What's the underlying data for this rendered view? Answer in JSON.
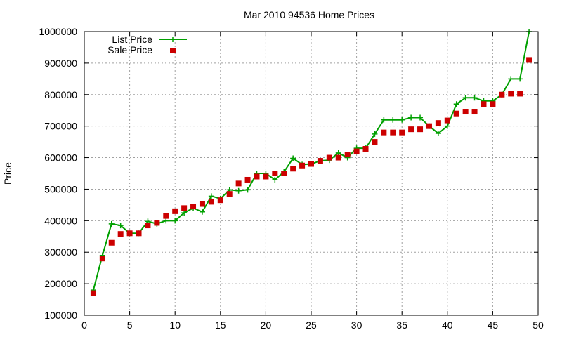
{
  "chart_data": {
    "type": "line",
    "title": "Mar 2010 94536 Home Prices",
    "xlabel": "",
    "ylabel": "Price",
    "xlim": [
      0,
      50
    ],
    "ylim": [
      100000,
      1000000
    ],
    "x_ticks": [
      0,
      5,
      10,
      15,
      20,
      25,
      30,
      35,
      40,
      45,
      50
    ],
    "y_ticks": [
      100000,
      200000,
      300000,
      400000,
      500000,
      600000,
      700000,
      800000,
      900000,
      1000000
    ],
    "grid": true,
    "legend_position": "top-left",
    "series": [
      {
        "name": "List Price",
        "style": "line+plus",
        "color": "#00a000",
        "x": [
          1,
          2,
          3,
          4,
          5,
          6,
          7,
          8,
          9,
          10,
          11,
          12,
          13,
          14,
          15,
          16,
          17,
          18,
          19,
          20,
          21,
          22,
          23,
          24,
          25,
          26,
          27,
          28,
          29,
          30,
          31,
          32,
          33,
          34,
          35,
          36,
          37,
          38,
          39,
          40,
          41,
          42,
          43,
          44,
          45,
          46,
          47,
          48,
          49
        ],
        "y": [
          180000,
          290000,
          390000,
          385000,
          360000,
          360000,
          398000,
          390000,
          400000,
          400000,
          425000,
          440000,
          428000,
          478000,
          470000,
          498000,
          495000,
          498000,
          550000,
          550000,
          530000,
          555000,
          598000,
          578000,
          580000,
          590000,
          592000,
          615000,
          600000,
          630000,
          630000,
          675000,
          720000,
          720000,
          720000,
          727000,
          727000,
          700000,
          677000,
          700000,
          770000,
          790000,
          790000,
          780000,
          780000,
          800000,
          850000,
          850000,
          1000000
        ]
      },
      {
        "name": "Sale Price",
        "style": "square",
        "color": "#cc0000",
        "x": [
          1,
          2,
          3,
          4,
          5,
          6,
          7,
          8,
          9,
          10,
          11,
          12,
          13,
          14,
          15,
          16,
          17,
          18,
          19,
          20,
          21,
          22,
          23,
          24,
          25,
          26,
          27,
          28,
          29,
          30,
          31,
          32,
          33,
          34,
          35,
          36,
          37,
          38,
          39,
          40,
          41,
          42,
          43,
          44,
          45,
          46,
          47,
          48,
          49
        ],
        "y": [
          170000,
          280000,
          330000,
          358000,
          360000,
          360000,
          385000,
          393000,
          415000,
          430000,
          440000,
          445000,
          453000,
          460000,
          465000,
          485000,
          518000,
          530000,
          540000,
          540000,
          550000,
          550000,
          565000,
          575000,
          580000,
          590000,
          600000,
          600000,
          610000,
          620000,
          628000,
          650000,
          680000,
          680000,
          680000,
          690000,
          690000,
          700000,
          710000,
          718000,
          740000,
          746000,
          746000,
          770000,
          770000,
          800000,
          803000,
          803000,
          910000
        ]
      }
    ]
  }
}
